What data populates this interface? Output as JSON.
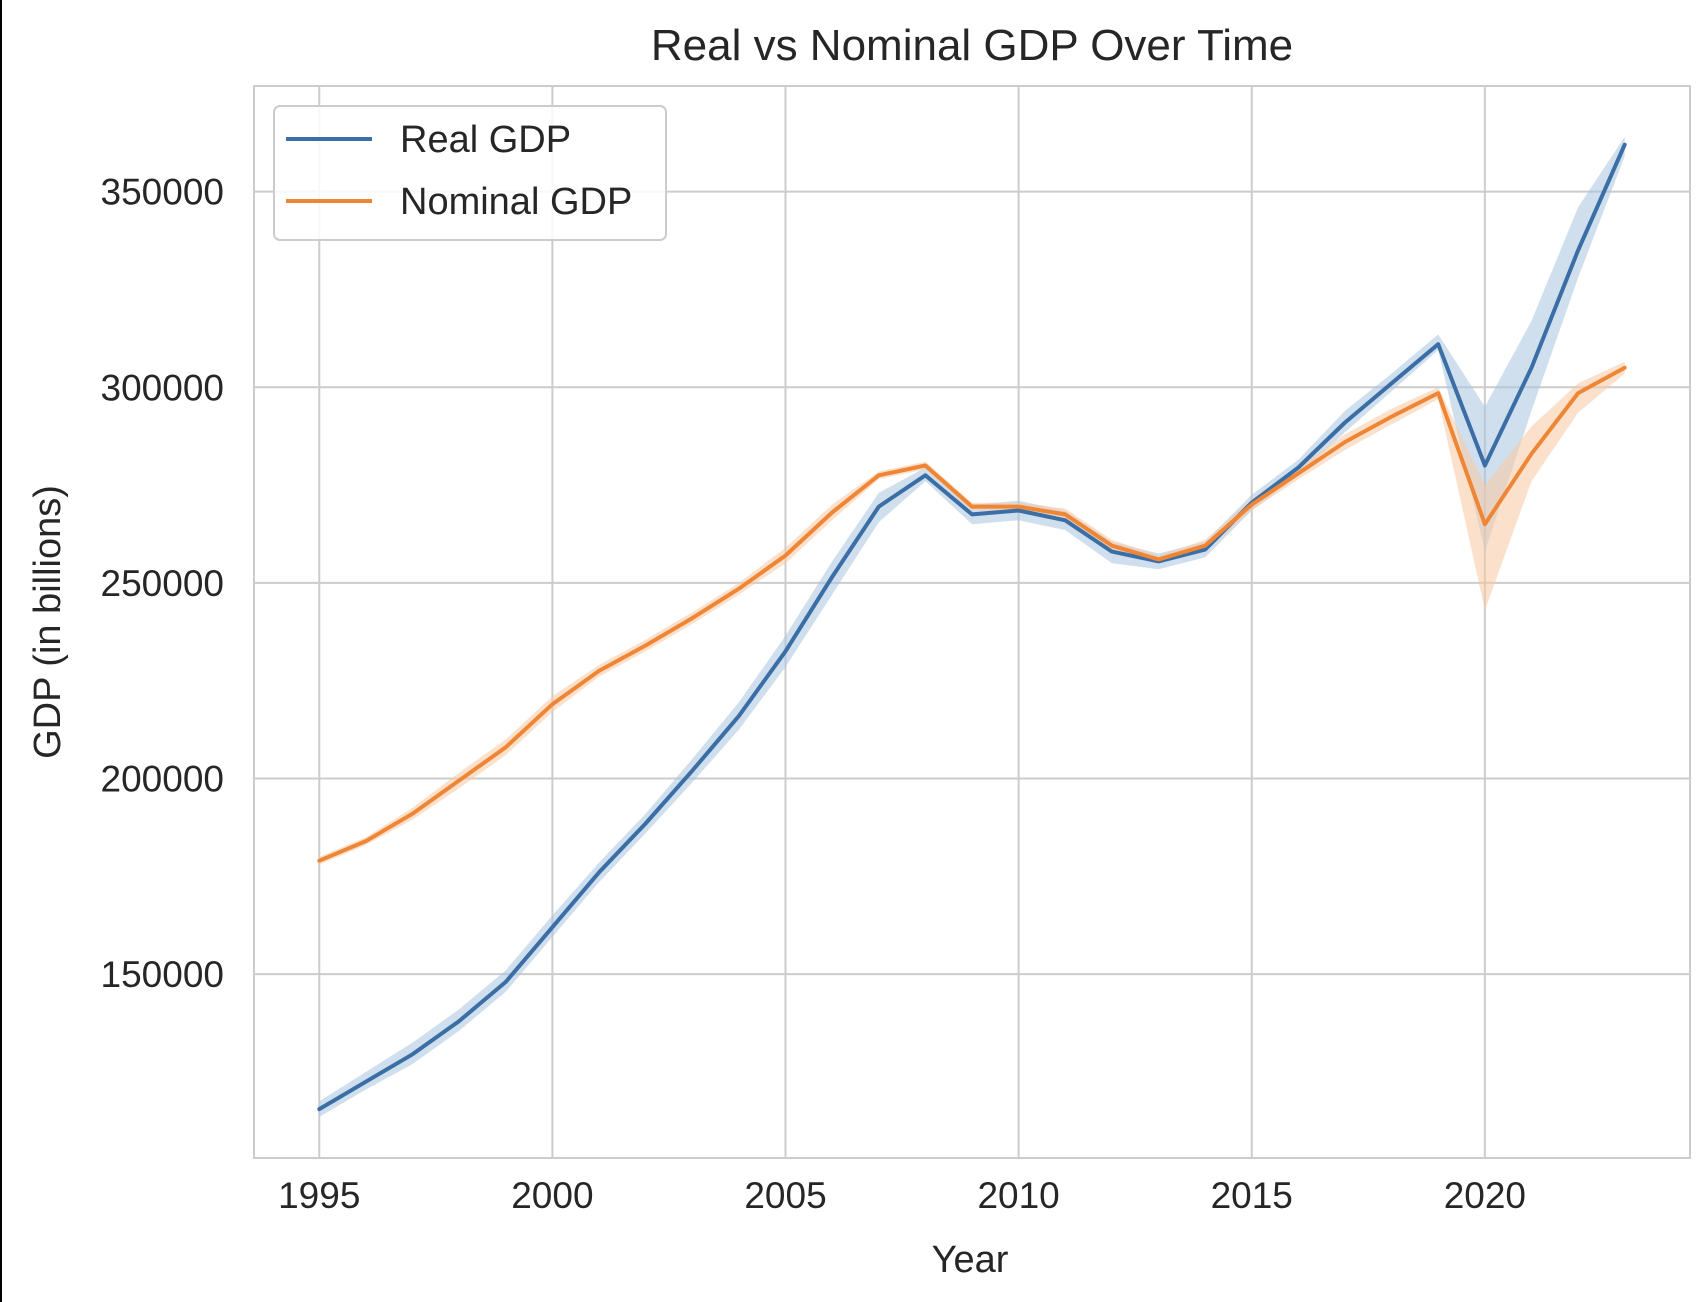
{
  "chart_data": {
    "type": "line",
    "title": "Real vs Nominal GDP Over Time",
    "xlabel": "Year",
    "ylabel": "GDP (in billions)",
    "xlim": [
      1993.6,
      2024.4
    ],
    "ylim": [
      103000,
      377000
    ],
    "xticks": [
      1995,
      2000,
      2005,
      2010,
      2015,
      2020
    ],
    "yticks": [
      150000,
      200000,
      250000,
      300000,
      350000
    ],
    "grid": true,
    "legend": "upper-left",
    "x": [
      1995,
      1996,
      1997,
      1998,
      1999,
      2000,
      2001,
      2002,
      2003,
      2004,
      2005,
      2006,
      2007,
      2008,
      2009,
      2010,
      2011,
      2012,
      2013,
      2014,
      2015,
      2016,
      2017,
      2018,
      2019,
      2020,
      2021,
      2022,
      2023
    ],
    "series": [
      {
        "name": "Real GDP",
        "color": "#3a6ea5",
        "band_color": "#a9c4e0",
        "values": [
          115500,
          122500,
          129500,
          138000,
          148000,
          162000,
          176000,
          188500,
          202000,
          216000,
          232500,
          251500,
          269500,
          277500,
          267500,
          268500,
          266000,
          258000,
          255500,
          258500,
          270500,
          279500,
          291000,
          301000,
          311000,
          280000,
          305000,
          335000,
          362000
        ],
        "band_low": [
          113500,
          120500,
          127000,
          135500,
          145500,
          159500,
          173500,
          186000,
          199000,
          212500,
          228500,
          247000,
          265500,
          276000,
          265000,
          266000,
          263500,
          255000,
          253500,
          256500,
          268500,
          277500,
          288500,
          299000,
          309500,
          258000,
          294000,
          328000,
          359000
        ],
        "band_high": [
          117500,
          125000,
          132500,
          141000,
          151000,
          165000,
          178500,
          191000,
          205000,
          219500,
          236500,
          255500,
          273000,
          279500,
          270000,
          271000,
          268500,
          260500,
          257500,
          260500,
          272500,
          281500,
          294000,
          303500,
          313500,
          295000,
          317000,
          346000,
          364000
        ]
      },
      {
        "name": "Nominal GDP",
        "color": "#ef8636",
        "band_color": "#f7c9a3",
        "values": [
          179000,
          184000,
          191000,
          199500,
          208000,
          219000,
          227500,
          234000,
          241000,
          248500,
          257000,
          268000,
          277500,
          280000,
          269500,
          269500,
          267500,
          259500,
          256000,
          259500,
          270000,
          278000,
          286000,
          292500,
          298500,
          265000,
          283000,
          298500,
          305000
        ],
        "band_low": [
          178000,
          183000,
          189500,
          197500,
          206000,
          217000,
          226000,
          232500,
          239500,
          247000,
          255000,
          266000,
          276500,
          279000,
          268500,
          268500,
          266000,
          258000,
          255000,
          258000,
          268500,
          276500,
          284000,
          290500,
          297000,
          243000,
          276000,
          293500,
          303500
        ],
        "band_high": [
          180000,
          185000,
          192500,
          201500,
          210000,
          221000,
          229000,
          235500,
          242500,
          250000,
          259000,
          270000,
          278500,
          281000,
          270500,
          270500,
          269000,
          261000,
          257000,
          261000,
          271500,
          279500,
          288000,
          294500,
          300000,
          275000,
          290000,
          301000,
          306500
        ]
      }
    ]
  }
}
